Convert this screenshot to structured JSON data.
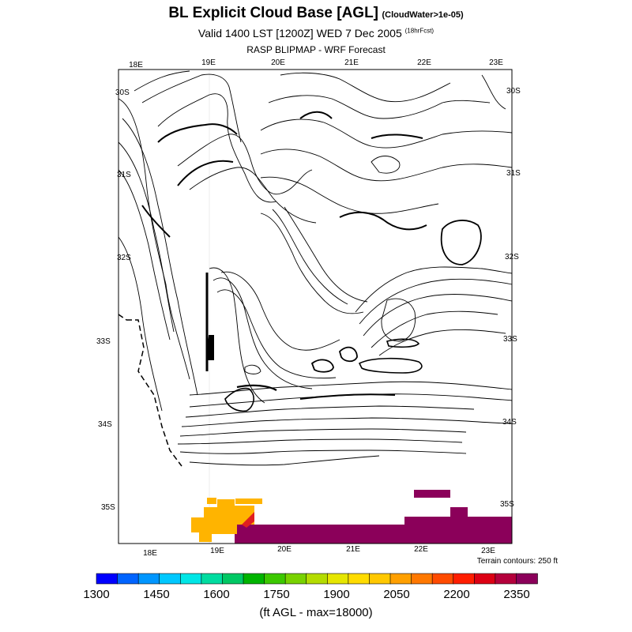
{
  "header": {
    "title": "BL Explicit Cloud Base [AGL]",
    "title_note": "(CloudWater>1e-05)",
    "valid_line": "Valid 1400 LST [1200Z] WED 7 Dec 2005",
    "valid_note": "(18hrFcst)",
    "model_line": "RASP BLIPMAP - WRF Forecast"
  },
  "map": {
    "top_lon_labels": [
      "18E",
      "19E",
      "20E",
      "21E",
      "22E",
      "23E"
    ],
    "bottom_lon_labels": [
      "18E",
      "19E",
      "20E",
      "21E",
      "22E",
      "23E"
    ],
    "left_lat_labels": [
      "30S",
      "31S",
      "32S",
      "33S",
      "34S",
      "35S"
    ],
    "right_lat_labels": [
      "30S",
      "31S",
      "32S",
      "33S",
      "34S",
      "35S"
    ],
    "terrain_note": "Terrain contours: 250 ft",
    "colors": {
      "purple": "#8b005a",
      "orange": "#ffb400",
      "red": "#e02020",
      "contour": "#000000"
    }
  },
  "colorbar": {
    "labels": [
      "1300",
      "1450",
      "1600",
      "1750",
      "1900",
      "2050",
      "2200",
      "2350"
    ],
    "colors": [
      "#0000ff",
      "#0064ff",
      "#0096ff",
      "#00c8ff",
      "#00e6e6",
      "#00dca0",
      "#00c864",
      "#00b400",
      "#3cc800",
      "#78d200",
      "#b4dc00",
      "#e6e600",
      "#ffdc00",
      "#ffc800",
      "#ffa000",
      "#ff7800",
      "#ff4b00",
      "#ff1e00",
      "#dc0014",
      "#b4003c",
      "#8b005a"
    ],
    "caption": "(ft AGL - max=18000)"
  }
}
